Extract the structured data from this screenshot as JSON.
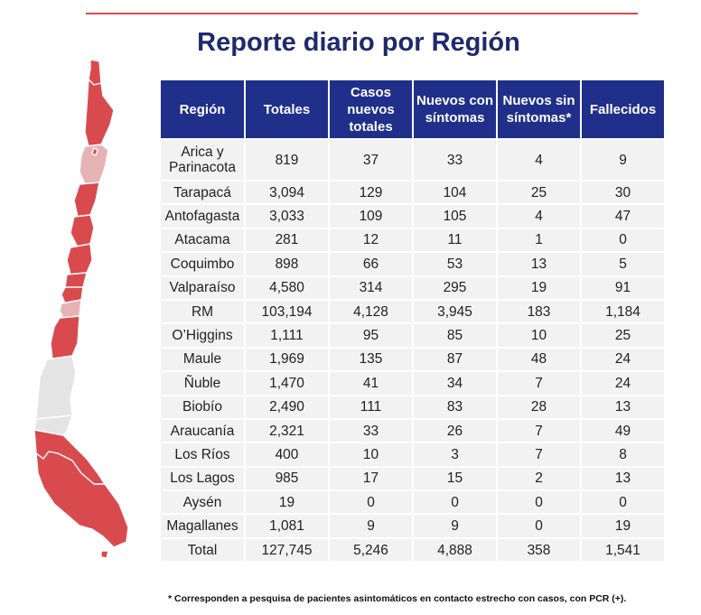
{
  "title": "Reporte diario por Región",
  "colors": {
    "header_bg": "#1f2f8a",
    "title": "#1f2a6b",
    "accent_red": "#d94a4e",
    "light_pink": "#e6b3b5",
    "gray": "#e4e4e4",
    "cell_bg": "#f2f2f2"
  },
  "table": {
    "headers": [
      "Región",
      "Totales",
      "Casos nuevos totales",
      "Nuevos con síntomas",
      "Nuevos sin síntomas*",
      "Fallecidos"
    ],
    "rows": [
      [
        "Arica y Parinacota",
        "819",
        "37",
        "33",
        "4",
        "9"
      ],
      [
        "Tarapacá",
        "3,094",
        "129",
        "104",
        "25",
        "30"
      ],
      [
        "Antofagasta",
        "3,033",
        "109",
        "105",
        "4",
        "47"
      ],
      [
        "Atacama",
        "281",
        "12",
        "11",
        "1",
        "0"
      ],
      [
        "Coquimbo",
        "898",
        "66",
        "53",
        "13",
        "5"
      ],
      [
        "Valparaíso",
        "4,580",
        "314",
        "295",
        "19",
        "91"
      ],
      [
        "RM",
        "103,194",
        "4,128",
        "3,945",
        "183",
        "1,184"
      ],
      [
        "O’Higgins",
        "1,111",
        "95",
        "85",
        "10",
        "25"
      ],
      [
        "Maule",
        "1,969",
        "135",
        "87",
        "48",
        "24"
      ],
      [
        "Ñuble",
        "1,470",
        "41",
        "34",
        "7",
        "24"
      ],
      [
        "Biobío",
        "2,490",
        "111",
        "83",
        "28",
        "13"
      ],
      [
        "Araucanía",
        "2,321",
        "33",
        "26",
        "7",
        "49"
      ],
      [
        "Los Ríos",
        "400",
        "10",
        "3",
        "7",
        "8"
      ],
      [
        "Los Lagos",
        "985",
        "17",
        "15",
        "2",
        "13"
      ],
      [
        "Aysén",
        "19",
        "0",
        "0",
        "0",
        "0"
      ],
      [
        "Magallanes",
        "1,081",
        "9",
        "9",
        "0",
        "19"
      ],
      [
        "Total",
        "127,745",
        "5,246",
        "4,888",
        "358",
        "1,541"
      ]
    ]
  },
  "footnote": "* Corresponden a pesquisa de pacientes asintomáticos en contacto estrecho con casos, con PCR (+).",
  "map": {
    "icon": "chile-regions-map"
  }
}
